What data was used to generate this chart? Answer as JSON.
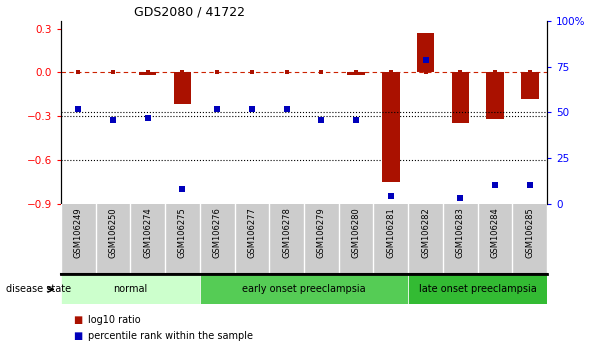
{
  "title": "GDS2080 / 41722",
  "samples": [
    "GSM106249",
    "GSM106250",
    "GSM106274",
    "GSM106275",
    "GSM106276",
    "GSM106277",
    "GSM106278",
    "GSM106279",
    "GSM106280",
    "GSM106281",
    "GSM106282",
    "GSM106283",
    "GSM106284",
    "GSM106285"
  ],
  "log10_ratio": [
    0.0,
    0.0,
    -0.02,
    -0.22,
    0.0,
    0.0,
    0.0,
    0.0,
    -0.02,
    -0.75,
    0.27,
    -0.35,
    -0.32,
    -0.18
  ],
  "percentile_rank": [
    52,
    46,
    47,
    8,
    52,
    52,
    52,
    46,
    46,
    4,
    79,
    3,
    10,
    10
  ],
  "groups": [
    {
      "label": "normal",
      "start": 0,
      "end": 3,
      "color": "#ccffcc"
    },
    {
      "label": "early onset preeclampsia",
      "start": 4,
      "end": 9,
      "color": "#55cc55"
    },
    {
      "label": "late onset preeclampsia",
      "start": 10,
      "end": 13,
      "color": "#33bb33"
    }
  ],
  "ylim_left": [
    -0.9,
    0.35
  ],
  "ylim_right": [
    0,
    100
  ],
  "left_ticks": [
    0.3,
    0.0,
    -0.3,
    -0.6,
    -0.9
  ],
  "right_ticks": [
    100,
    75,
    50,
    25,
    0
  ],
  "bar_color": "#aa1100",
  "dot_color": "#0000bb",
  "dash_color": "#cc2200",
  "background_color": "#ffffff"
}
